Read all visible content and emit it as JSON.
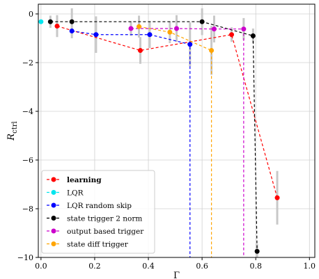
{
  "chart_data": {
    "type": "scatter",
    "xlabel": "Γ",
    "ylabel": "R_ctrl",
    "xlim": [
      -0.01,
      1.02
    ],
    "ylim": [
      -10,
      0.4
    ],
    "xticks": [
      0.0,
      0.2,
      0.4,
      0.6,
      0.8,
      1.0
    ],
    "xtick_labels": [
      "0.0",
      "0.2",
      "0.4",
      "0.6",
      "0.8",
      "1.0"
    ],
    "yticks": [
      0,
      -2,
      -4,
      -6,
      -8,
      -10
    ],
    "ytick_labels": [
      "0",
      "−2",
      "−4",
      "−6",
      "−8",
      "−10"
    ],
    "grid": true,
    "legend_position": "lower-left",
    "series": [
      {
        "name": "learning",
        "color": "#ff0000",
        "bold_label": true,
        "line_to_bottom": false,
        "points": [
          {
            "x": 0.06,
            "y": -0.5,
            "err": 0.45
          },
          {
            "x": 0.37,
            "y": -1.5,
            "err": 0.55
          },
          {
            "x": 0.71,
            "y": -0.85,
            "err": 0.3
          },
          {
            "x": 0.88,
            "y": -7.55,
            "err": 1.1
          }
        ]
      },
      {
        "name": "LQR",
        "color": "#00e5ee",
        "bold_label": false,
        "line_to_bottom": false,
        "points": [
          {
            "x": 0.0,
            "y": -0.32,
            "err": 0.0
          }
        ]
      },
      {
        "name": "LQR random skip",
        "color": "#0000ff",
        "bold_label": false,
        "line_to_bottom": true,
        "points": [
          {
            "x": 0.115,
            "y": -0.7,
            "err": 0.3
          },
          {
            "x": 0.205,
            "y": -0.85,
            "err": 0.75
          },
          {
            "x": 0.405,
            "y": -0.85,
            "err": 0.55
          },
          {
            "x": 0.555,
            "y": -1.25,
            "err": 0.9
          }
        ]
      },
      {
        "name": "state trigger 2 norm",
        "color": "#000000",
        "bold_label": false,
        "line_to_bottom": false,
        "points": [
          {
            "x": 0.035,
            "y": -0.32,
            "err": 0.25
          },
          {
            "x": 0.115,
            "y": -0.32,
            "err": 0.55
          },
          {
            "x": 0.6,
            "y": -0.32,
            "err": 0.55
          },
          {
            "x": 0.79,
            "y": -0.9,
            "err": 0.3
          },
          {
            "x": 0.805,
            "y": -9.75,
            "err": 0.3
          }
        ]
      },
      {
        "name": "output based trigger",
        "color": "#cc00cc",
        "bold_label": false,
        "line_to_bottom": true,
        "points": [
          {
            "x": 0.335,
            "y": -0.6,
            "err": 0.3
          },
          {
            "x": 0.505,
            "y": -0.6,
            "err": 0.55
          },
          {
            "x": 0.645,
            "y": -0.62,
            "err": 0.55
          },
          {
            "x": 0.755,
            "y": -0.62,
            "err": 0.45
          }
        ]
      },
      {
        "name": "state diff trigger",
        "color": "#ffa500",
        "bold_label": false,
        "line_to_bottom": true,
        "points": [
          {
            "x": 0.365,
            "y": -0.52,
            "err": 0.45
          },
          {
            "x": 0.48,
            "y": -0.75,
            "err": 0.45
          },
          {
            "x": 0.635,
            "y": -1.5,
            "err": 1.0
          }
        ]
      }
    ]
  }
}
